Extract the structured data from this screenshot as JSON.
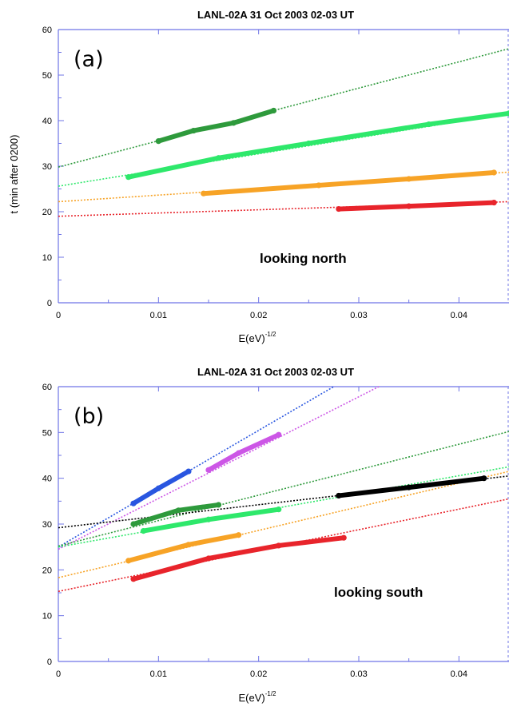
{
  "chart_data": [
    {
      "type": "scatter",
      "panel_label": "(a)",
      "title": "LANL-02A    31 Oct 2003   02-03 UT",
      "xlabel": "E(eV)",
      "xlabel_sup": "-1/2",
      "ylabel": "t (min after 0200)",
      "annotation": "looking north",
      "xlim": [
        0,
        0.045
      ],
      "ylim": [
        0,
        60
      ],
      "xticks": [
        0,
        0.01,
        0.02,
        0.03,
        0.04
      ],
      "xtick_labels": [
        "0",
        "0.01",
        "0.02",
        "0.03",
        "0.04"
      ],
      "yticks": [
        0,
        10,
        20,
        30,
        40,
        50,
        60
      ],
      "ytick_labels": [
        "0",
        "10",
        "20",
        "30",
        "40",
        "50",
        "60"
      ],
      "series": [
        {
          "color": "#2e9a3c",
          "fit": [
            [
              0,
              29.8
            ],
            [
              0.045,
              55.8
            ]
          ],
          "data": [
            [
              0.01,
              35.5
            ],
            [
              0.0135,
              37.8
            ],
            [
              0.0175,
              39.5
            ],
            [
              0.0215,
              42.2
            ]
          ]
        },
        {
          "color": "#2ee86b",
          "fit": [
            [
              0,
              25.6
            ],
            [
              0.045,
              41.6
            ]
          ],
          "data": [
            [
              0.007,
              27.6
            ],
            [
              0.016,
              31.8
            ],
            [
              0.025,
              35.0
            ],
            [
              0.037,
              39.2
            ],
            [
              0.045,
              41.6
            ]
          ]
        },
        {
          "color": "#f7a326",
          "fit": [
            [
              0,
              22.2
            ],
            [
              0.045,
              28.7
            ]
          ],
          "data": [
            [
              0.0145,
              24.0
            ],
            [
              0.026,
              25.8
            ],
            [
              0.035,
              27.2
            ],
            [
              0.0435,
              28.6
            ]
          ]
        },
        {
          "color": "#e8242b",
          "fit": [
            [
              0,
              19.0
            ],
            [
              0.045,
              22.2
            ]
          ],
          "data": [
            [
              0.028,
              20.6
            ],
            [
              0.035,
              21.2
            ],
            [
              0.0435,
              22.0
            ]
          ]
        }
      ]
    },
    {
      "type": "scatter",
      "panel_label": "(b)",
      "title": "LANL-02A    31 Oct 2003   02-03 UT",
      "xlabel": "E(eV)",
      "xlabel_sup": "-1/2",
      "ylabel": "",
      "annotation": "looking south",
      "xlim": [
        0,
        0.045
      ],
      "ylim": [
        0,
        60
      ],
      "xticks": [
        0,
        0.01,
        0.02,
        0.03,
        0.04
      ],
      "xtick_labels": [
        "0",
        "0.01",
        "0.02",
        "0.03",
        "0.04"
      ],
      "yticks": [
        0,
        10,
        20,
        30,
        40,
        50,
        60
      ],
      "ytick_labels": [
        "0",
        "10",
        "20",
        "30",
        "40",
        "50",
        "60"
      ],
      "series": [
        {
          "color": "#2956e0",
          "fit": [
            [
              0,
              25.0
            ],
            [
              0.0275,
              60.0
            ]
          ],
          "data": [
            [
              0.0075,
              34.5
            ],
            [
              0.01,
              37.8
            ],
            [
              0.013,
              41.5
            ]
          ]
        },
        {
          "color": "#cc56e6",
          "fit": [
            [
              0,
              24.5
            ],
            [
              0.032,
              60.0
            ]
          ],
          "data": [
            [
              0.015,
              41.8
            ],
            [
              0.018,
              45.5
            ],
            [
              0.022,
              49.5
            ]
          ]
        },
        {
          "color": "#2e9a3c",
          "fit": [
            [
              0,
              25.2
            ],
            [
              0.045,
              50.2
            ]
          ],
          "data": [
            [
              0.0075,
              30.0
            ],
            [
              0.012,
              33.0
            ],
            [
              0.016,
              34.2
            ]
          ]
        },
        {
          "color": "#2ee86b",
          "fit": [
            [
              0,
              25.0
            ],
            [
              0.045,
              42.5
            ]
          ],
          "data": [
            [
              0.0085,
              28.5
            ],
            [
              0.015,
              31.0
            ],
            [
              0.022,
              33.2
            ]
          ]
        },
        {
          "color": "#000000",
          "fit": [
            [
              0,
              29.2
            ],
            [
              0.045,
              40.5
            ]
          ],
          "data": [
            [
              0.028,
              36.2
            ],
            [
              0.035,
              38.0
            ],
            [
              0.0425,
              40.0
            ]
          ]
        },
        {
          "color": "#f7a326",
          "fit": [
            [
              0,
              18.3
            ],
            [
              0.045,
              41.5
            ]
          ],
          "data": [
            [
              0.007,
              22.0
            ],
            [
              0.013,
              25.5
            ],
            [
              0.018,
              27.6
            ]
          ]
        },
        {
          "color": "#e8242b",
          "fit": [
            [
              0,
              15.3
            ],
            [
              0.045,
              35.5
            ]
          ],
          "data": [
            [
              0.0075,
              18.0
            ],
            [
              0.015,
              22.5
            ],
            [
              0.022,
              25.3
            ],
            [
              0.0285,
              27.0
            ]
          ]
        }
      ]
    }
  ]
}
